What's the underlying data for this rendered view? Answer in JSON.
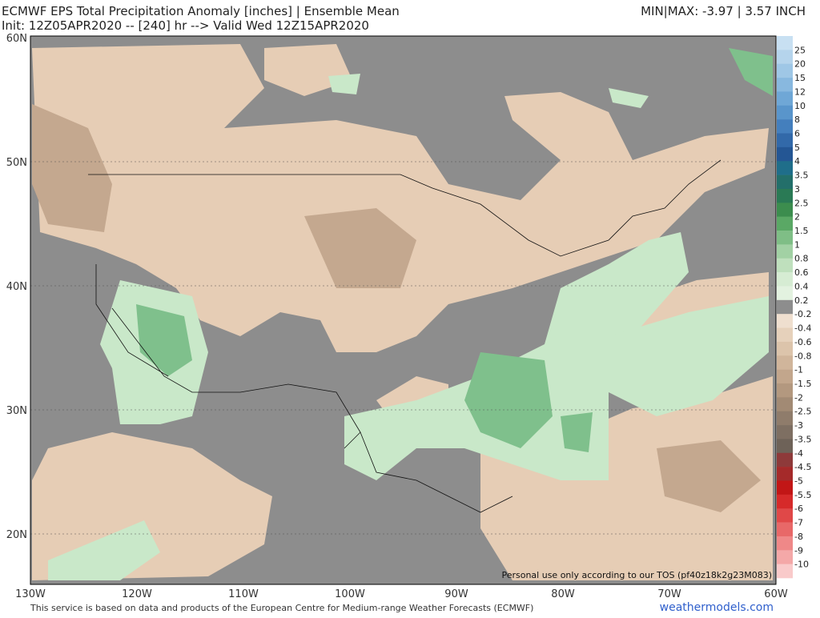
{
  "header": {
    "title": "ECMWF EPS Total Precipitation Anomaly [inches] | Ensemble Mean",
    "subtitle": "Init: 12Z05APR2020 -- [240] hr --> Valid Wed 12Z15APR2020",
    "minmax": "MIN|MAX: -3.97 | 3.57 INCH"
  },
  "map": {
    "lat_labels": [
      "60N",
      "50N",
      "40N",
      "30N",
      "20N"
    ],
    "lon_labels": [
      "130W",
      "120W",
      "110W",
      "100W",
      "90W",
      "80W",
      "70W",
      "60W"
    ],
    "notice": "Personal use only according to our TOS (pf40z18k2g23M083)"
  },
  "colorbar": {
    "labels": [
      "25",
      "20",
      "15",
      "12",
      "10",
      "8",
      "6",
      "5",
      "4",
      "3.5",
      "3",
      "2.5",
      "2",
      "1.5",
      "1",
      "0.8",
      "0.6",
      "0.4",
      "0.2",
      "-0.2",
      "-0.4",
      "-0.6",
      "-0.8",
      "-1",
      "-1.5",
      "-2",
      "-2.5",
      "-3",
      "-3.5",
      "-4",
      "-4.5",
      "-5",
      "-5.5",
      "-6",
      "-7",
      "-8",
      "-9",
      "-10"
    ]
  },
  "footer": {
    "credit": "This service is based on data and products of the European Centre for Medium-range Weather Forecasts (ECMWF)",
    "site": "weathermodels.com"
  }
}
